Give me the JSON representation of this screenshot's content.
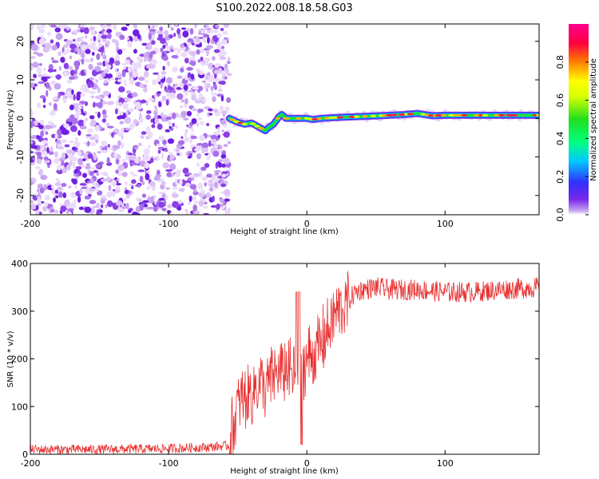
{
  "page": {
    "title": "S100.2022.008.18.58.G03"
  },
  "chart_data": [
    {
      "type": "heatmap",
      "xlabel": "Height of straight line (km)",
      "ylabel": "Frequency (Hz)",
      "xlim": [
        -200,
        168
      ],
      "ylim": [
        -25,
        24.5
      ],
      "xticks": [
        -200,
        -100,
        0,
        100
      ],
      "yticks": [
        -20,
        -10,
        0,
        10,
        20
      ],
      "noise_region_x": [
        -200,
        -56
      ],
      "ridge": {
        "x": [
          -56,
          -50,
          -45,
          -40,
          -35,
          -30,
          -27,
          -24,
          -20,
          -18,
          -15,
          -10,
          -5,
          0,
          5,
          10,
          20,
          40,
          60,
          70,
          80,
          90,
          100,
          130,
          168
        ],
        "y": [
          0,
          -1,
          -1.5,
          -1.2,
          -2.2,
          -3.2,
          -2.2,
          -1.5,
          0.5,
          1,
          0,
          0,
          0,
          0,
          -0.3,
          0,
          0.2,
          0.5,
          0.8,
          1,
          1.3,
          0.7,
          0.8,
          0.8,
          0.8
        ]
      },
      "colorbar": {
        "label": "Normalized spectral amplitude",
        "range": [
          0,
          1
        ],
        "ticks": [
          "0.0",
          "0.2",
          "0.4",
          "0.6",
          "0.8"
        ],
        "colors": [
          "#ffffff",
          "#c8a8f0",
          "#7a28e8",
          "#3030ff",
          "#00c8ff",
          "#00ff80",
          "#20e020",
          "#d8ff00",
          "#ffff00",
          "#ff8000",
          "#ff0040",
          "#ff0090"
        ]
      }
    },
    {
      "type": "line",
      "xlabel": "Height of straight line (km)",
      "ylabel": "SNR (10 * v/v)",
      "xlim": [
        -200,
        168
      ],
      "ylim": [
        0,
        400
      ],
      "xticks": [
        -200,
        -100,
        0,
        100
      ],
      "yticks": [
        0,
        100,
        200,
        300,
        400
      ],
      "line_color": "#e83030",
      "series": [
        {
          "x": [
            -200,
            -150,
            -100,
            -70,
            -56,
            -50,
            -45,
            -40,
            -35,
            -30,
            -25,
            -20,
            -15,
            -10,
            -5,
            -2,
            0,
            5,
            10,
            15,
            20,
            25,
            30,
            35,
            40,
            50,
            60,
            80,
            100,
            120,
            140,
            168
          ],
          "y": [
            10,
            10,
            12,
            15,
            18,
            100,
            120,
            130,
            150,
            140,
            160,
            170,
            180,
            160,
            185,
            190,
            200,
            210,
            230,
            260,
            290,
            310,
            320,
            340,
            345,
            350,
            345,
            345,
            340,
            340,
            345,
            350
          ]
        }
      ]
    }
  ]
}
